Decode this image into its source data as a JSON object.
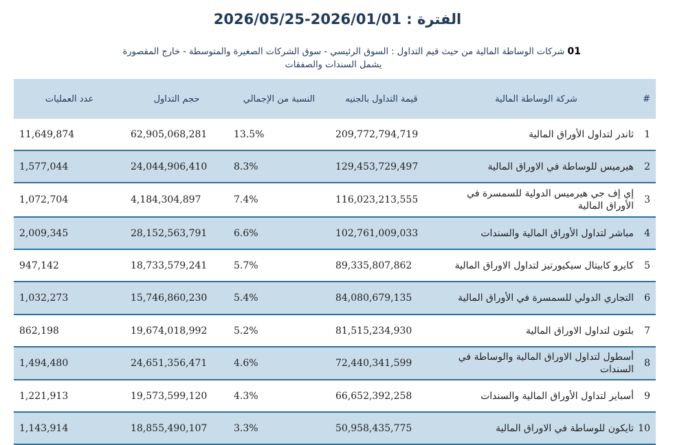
{
  "header": {
    "period_label": "الفترة :",
    "period_value": "2026/05/25-2026/01/01",
    "section_number": "01",
    "section_title_line1": "شركات الوساطة المالية من حيث قيم التداول : السوق الرئيسي - سوق الشركات الصغيرة والمتوسطة - خارج المقصورة",
    "section_title_line2": "يشمل السندات والصفقات"
  },
  "table": {
    "columns": {
      "index": "#",
      "company": "شركة الوساطة المالية",
      "value": "قيمة التداول بالجنيه",
      "share": "النسبة من الإجمالي",
      "volume": "حجم التداول",
      "trades": "عدد العمليات"
    },
    "rows": [
      {
        "index": "1",
        "company": "ثاندر لتداول الأوراق المالية",
        "value": "209,772,794,719",
        "share": "13.5%",
        "volume": "62,905,068,281",
        "trades": "11,649,874"
      },
      {
        "index": "2",
        "company": "هيرميس للوساطة في الاوراق المالية",
        "value": "129,453,729,497",
        "share": "8.3%",
        "volume": "24,044,906,410",
        "trades": "1,577,044"
      },
      {
        "index": "3",
        "company": "إي إف جي هيرميس الدولية للسمسرة في الأوراق المالية",
        "value": "116,023,213,555",
        "share": "7.4%",
        "volume": "4,184,304,897",
        "trades": "1,072,704"
      },
      {
        "index": "4",
        "company": "مباشر لتداول الأوراق المالية والسندات",
        "value": "102,761,009,033",
        "share": "6.6%",
        "volume": "28,152,563,791",
        "trades": "2,009,345"
      },
      {
        "index": "5",
        "company": "كايرو كابيتال سيكيورتيز لتداول الاوراق المالية",
        "value": "89,335,807,862",
        "share": "5.7%",
        "volume": "18,733,579,241",
        "trades": "947,142"
      },
      {
        "index": "6",
        "company": "التجاري الدولي للسمسرة في الأوراق المالية",
        "value": "84,080,679,135",
        "share": "5.4%",
        "volume": "15,746,860,230",
        "trades": "1,032,273"
      },
      {
        "index": "7",
        "company": "بلتون لتداول الاوراق المالية",
        "value": "81,515,234,930",
        "share": "5.2%",
        "volume": "19,674,018,992",
        "trades": "862,198"
      },
      {
        "index": "8",
        "company": "أسطول لتداول الاوراق المالية والوساطة في السندات",
        "value": "72,440,341,599",
        "share": "4.6%",
        "volume": "24,651,356,471",
        "trades": "1,494,480"
      },
      {
        "index": "9",
        "company": "أسباير لتداول الأوراق المالية والسندات",
        "value": "66,652,392,258",
        "share": "4.3%",
        "volume": "19,573,599,120",
        "trades": "1,221,913"
      },
      {
        "index": "10",
        "company": "تايكون للوساطة في الاوراق المالية",
        "value": "50,958,435,775",
        "share": "3.3%",
        "volume": "18,855,490,107",
        "trades": "1,143,914"
      }
    ]
  }
}
